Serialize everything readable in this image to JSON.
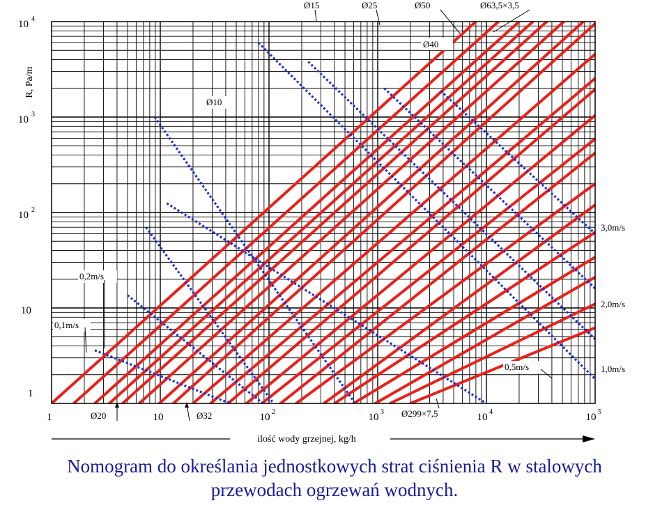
{
  "caption": {
    "line1": "Nomogram do określania jednostkowych strat ciśnienia R w stalowych",
    "line2": "przewodach ogrzewań wodnych."
  },
  "chart_data": {
    "type": "line",
    "x_scale": "log",
    "y_scale": "log",
    "xlim": [
      1,
      100000
    ],
    "ylim": [
      1,
      10000
    ],
    "xlabel": "ilość wody grzejnej, kg/h",
    "ylabel": "R, Pa/m",
    "grid": true,
    "x_ticks": [
      {
        "value": 1,
        "base": "1",
        "exp": ""
      },
      {
        "value": 10,
        "base": "10",
        "exp": ""
      },
      {
        "value": 100,
        "base": "10",
        "exp": "2"
      },
      {
        "value": 1000,
        "base": "10",
        "exp": "3"
      },
      {
        "value": 10000,
        "base": "10",
        "exp": "4"
      },
      {
        "value": 100000,
        "base": "10",
        "exp": "5"
      }
    ],
    "y_ticks": [
      {
        "value": 1,
        "base": "1",
        "exp": ""
      },
      {
        "value": 10,
        "base": "10",
        "exp": ""
      },
      {
        "value": 100,
        "base": "10",
        "exp": "2"
      },
      {
        "value": 1000,
        "base": "10",
        "exp": "3"
      },
      {
        "value": 10000,
        "base": "10",
        "exp": "4"
      }
    ],
    "colors": {
      "diameter_lines": "#e8211b",
      "velocity_lines": "#1f2fd0",
      "grid": "#000000"
    },
    "diameter_labels": [
      "Ø10",
      "Ø15",
      "Ø20",
      "Ø25",
      "Ø32",
      "Ø40",
      "Ø50",
      "Ø63,5×3,5",
      "Ø299×7,5"
    ],
    "velocity_labels": [
      "0,1m/s",
      "0,2m/s",
      "0,5m/s",
      "1,0m/s",
      "2,0m/s",
      "3,0m/s"
    ],
    "diameter_series": [
      {
        "x": [
          1,
          8000
        ],
        "y": [
          1,
          10000
        ]
      },
      {
        "x": [
          1.6,
          12900
        ],
        "y": [
          1,
          10000
        ]
      },
      {
        "x": [
          2.5,
          20000
        ],
        "y": [
          1,
          10000
        ]
      },
      {
        "x": [
          3.4,
          26800
        ],
        "y": [
          1,
          10000
        ]
      },
      {
        "x": [
          4.5,
          35900
        ],
        "y": [
          1,
          10000
        ]
      },
      {
        "x": [
          6.4,
          51500
        ],
        "y": [
          1,
          10000
        ]
      },
      {
        "x": [
          9.8,
          78000
        ],
        "y": [
          1,
          10000
        ]
      },
      {
        "x": [
          13.2,
          105000
        ],
        "y": [
          1,
          10000
        ]
      },
      {
        "x": [
          20,
          100000
        ],
        "y": [
          1,
          4560
        ]
      },
      {
        "x": [
          29,
          100000
        ],
        "y": [
          1,
          2540
        ]
      },
      {
        "x": [
          42,
          100000
        ],
        "y": [
          1,
          1950
        ]
      },
      {
        "x": [
          62,
          100000
        ],
        "y": [
          1,
          1040
        ]
      },
      {
        "x": [
          86,
          100000
        ],
        "y": [
          1,
          590
        ]
      },
      {
        "x": [
          128,
          100000
        ],
        "y": [
          1,
          420
        ]
      },
      {
        "x": [
          178,
          100000
        ],
        "y": [
          1,
          200
        ]
      },
      {
        "x": [
          320,
          100000
        ],
        "y": [
          1,
          120
        ]
      },
      {
        "x": [
          400,
          100000
        ],
        "y": [
          1,
          62
        ]
      },
      {
        "x": [
          600,
          100000
        ],
        "y": [
          1,
          34
        ]
      },
      {
        "x": [
          950,
          100000
        ],
        "y": [
          1,
          21
        ]
      },
      {
        "x": [
          1300,
          100000
        ],
        "y": [
          1,
          11
        ]
      },
      {
        "x": [
          2000,
          100000
        ],
        "y": [
          1,
          6.2
        ]
      }
    ],
    "velocity_series": [
      {
        "x": [
          2.5,
          44
        ],
        "y": [
          3.6,
          1
        ]
      },
      {
        "x": [
          5,
          88
        ],
        "y": [
          13.6,
          1
        ]
      },
      {
        "x": [
          7.4,
          110
        ],
        "y": [
          70,
          1
        ]
      },
      {
        "x": [
          8.9,
          620
        ],
        "y": [
          1000,
          1
        ]
      },
      {
        "x": [
          11.5,
          10000
        ],
        "y": [
          125,
          1
        ]
      },
      {
        "x": [
          80,
          100000
        ],
        "y": [
          6000,
          1.8
        ]
      },
      {
        "x": [
          230,
          100000
        ],
        "y": [
          3800,
          4.7
        ]
      },
      {
        "x": [
          1150,
          100000
        ],
        "y": [
          2000,
          16
        ]
      },
      {
        "x": [
          3800,
          100000
        ],
        "y": [
          1880,
          60
        ]
      }
    ]
  }
}
